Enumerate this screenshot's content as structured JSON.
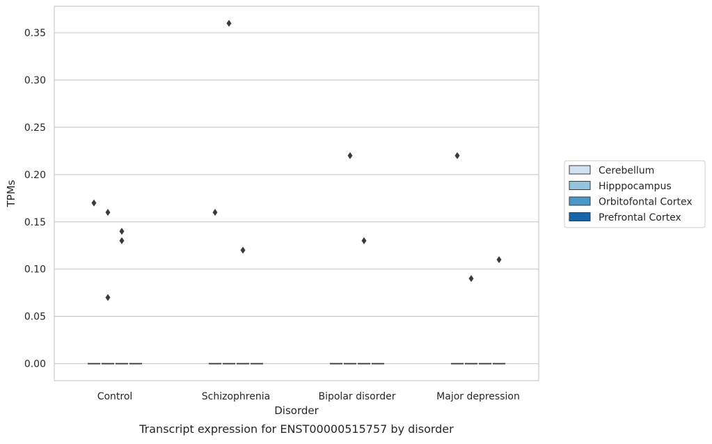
{
  "chart_data": {
    "type": "box",
    "title": "",
    "caption": "Transcript expression for ENST00000515757 by disorder",
    "xlabel": "Disorder",
    "ylabel": "TPMs",
    "categories": [
      "Control",
      "Schizophrenia",
      "Bipolar disorder",
      "Major depression"
    ],
    "hue_order": [
      "Cerebellum",
      "Hipppocampus",
      "Orbitofontal Cortex",
      "Prefrontal Cortex"
    ],
    "ylim": [
      -0.018,
      0.378
    ],
    "yticks": [
      0.0,
      0.05,
      0.1,
      0.15,
      0.2,
      0.25,
      0.3,
      0.35
    ],
    "ytick_labels": [
      "0.00",
      "0.05",
      "0.10",
      "0.15",
      "0.20",
      "0.25",
      "0.30",
      "0.35"
    ],
    "grid": true,
    "legend_position": "right",
    "series": [
      {
        "name": "Cerebellum",
        "color": "#d0e1f2",
        "medians": [
          0.0,
          0.0,
          0.0,
          0.0
        ],
        "outliers": [
          [
            0.17
          ],
          [
            0.16
          ],
          [],
          [
            0.22
          ]
        ]
      },
      {
        "name": "Hipppocampus",
        "color": "#94c4df",
        "medians": [
          0.0,
          0.0,
          0.0,
          0.0
        ],
        "outliers": [
          [
            0.16,
            0.07
          ],
          [
            0.36
          ],
          [
            0.22
          ],
          [
            0.09
          ]
        ]
      },
      {
        "name": "Orbitofontal Cortex",
        "color": "#4a98c9",
        "medians": [
          0.0,
          0.0,
          0.0,
          0.0
        ],
        "outliers": [
          [
            0.14,
            0.13
          ],
          [
            0.12
          ],
          [
            0.13
          ],
          []
        ]
      },
      {
        "name": "Prefrontal Cortex",
        "color": "#1764ab",
        "medians": [
          0.0,
          0.0,
          0.0,
          0.0
        ],
        "outliers": [
          [],
          [],
          [],
          [
            0.11
          ]
        ]
      }
    ]
  }
}
